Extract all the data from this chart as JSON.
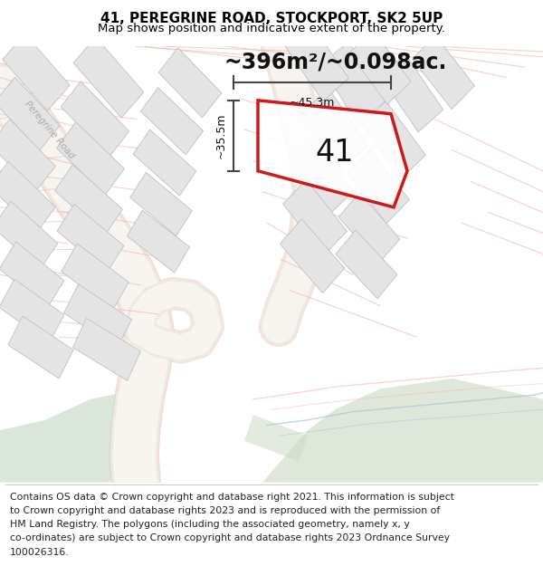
{
  "title_line1": "41, PEREGRINE ROAD, STOCKPORT, SK2 5UP",
  "title_line2": "Map shows position and indicative extent of the property.",
  "area_label": "~396m²/~0.098ac.",
  "plot_number": "41",
  "dim_width": "~45.3m",
  "dim_height": "~35.5m",
  "footer_line1": "Contains OS data © Crown copyright and database right 2021. This information is subject",
  "footer_line2": "to Crown copyright and database rights 2023 and is reproduced with the permission of",
  "footer_line3": "HM Land Registry. The polygons (including the associated geometry, namely x, y",
  "footer_line4": "co-ordinates) are subject to Crown copyright and database rights 2023 Ordnance Survey",
  "footer_line5": "100026316.",
  "bg_color": "#ffffff",
  "map_bg": "#f8f8f8",
  "plot_outline_color": "#cc0000",
  "dim_line_color": "#444444",
  "building_fill": "#e4e4e4",
  "building_edge": "#c0c0c0",
  "green_fill": "#ccdccc",
  "green_fill2": "#c8d8c0",
  "blue_line": "#a8c4d0",
  "road_fill": "#f5f0ea",
  "road_edge": "#f0b0a8",
  "road_label_color": "#aaaaaa",
  "road_label": "Peregrine Road",
  "title_fontsize": 11,
  "subtitle_fontsize": 9.5,
  "area_fontsize": 17,
  "plot_num_fontsize": 24,
  "footer_fontsize": 7.8,
  "dim_fontsize": 9
}
